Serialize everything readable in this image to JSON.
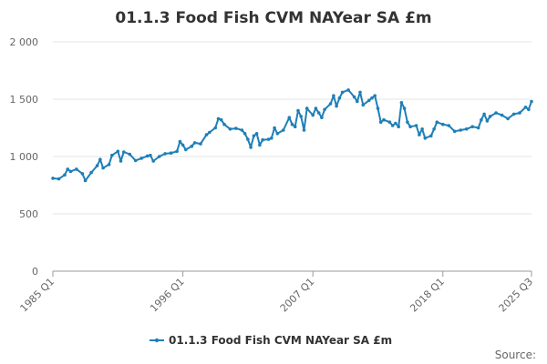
{
  "chart_data": {
    "type": "line",
    "title": "01.1.3 Food Fish CVM NAYear SA £m",
    "ylim": [
      0,
      2000
    ],
    "yticks": [
      "0",
      "500",
      "1 000",
      "1 500",
      "2 000"
    ],
    "ytick_values": [
      0,
      500,
      1000,
      1500,
      2000
    ],
    "xtick_labels": [
      "1985 Q1",
      "1996 Q1",
      "2007 Q1",
      "2018 Q1",
      "2025 Q3"
    ],
    "xtick_values": [
      1985.0,
      1996.0,
      2007.0,
      2018.0,
      2025.5
    ],
    "xlim": [
      1985.0,
      2025.5
    ],
    "grid": true,
    "legend_position": "bottom",
    "source_label": "Source:",
    "color": "#1f7fb7",
    "series": [
      {
        "name": "01.1.3 Food Fish CVM NAYear SA £m",
        "points": [
          [
            1985.0,
            810
          ],
          [
            1985.5,
            805
          ],
          [
            1986.0,
            840
          ],
          [
            1986.25,
            890
          ],
          [
            1986.5,
            870
          ],
          [
            1987.0,
            890
          ],
          [
            1987.5,
            850
          ],
          [
            1987.75,
            790
          ],
          [
            1988.25,
            860
          ],
          [
            1988.75,
            920
          ],
          [
            1989.0,
            975
          ],
          [
            1989.25,
            900
          ],
          [
            1989.75,
            930
          ],
          [
            1990.0,
            1010
          ],
          [
            1990.5,
            1045
          ],
          [
            1990.75,
            960
          ],
          [
            1991.0,
            1040
          ],
          [
            1991.5,
            1020
          ],
          [
            1992.0,
            965
          ],
          [
            1992.5,
            985
          ],
          [
            1993.0,
            1005
          ],
          [
            1993.25,
            1010
          ],
          [
            1993.5,
            960
          ],
          [
            1994.0,
            1000
          ],
          [
            1994.5,
            1025
          ],
          [
            1995.0,
            1030
          ],
          [
            1995.5,
            1045
          ],
          [
            1995.75,
            1130
          ],
          [
            1996.0,
            1100
          ],
          [
            1996.25,
            1060
          ],
          [
            1996.75,
            1090
          ],
          [
            1997.0,
            1120
          ],
          [
            1997.5,
            1110
          ],
          [
            1998.0,
            1190
          ],
          [
            1998.25,
            1210
          ],
          [
            1998.75,
            1250
          ],
          [
            1999.0,
            1330
          ],
          [
            1999.25,
            1320
          ],
          [
            1999.5,
            1280
          ],
          [
            2000.0,
            1240
          ],
          [
            2000.5,
            1245
          ],
          [
            2001.0,
            1230
          ],
          [
            2001.25,
            1200
          ],
          [
            2001.5,
            1150
          ],
          [
            2001.75,
            1080
          ],
          [
            2002.0,
            1180
          ],
          [
            2002.25,
            1200
          ],
          [
            2002.5,
            1100
          ],
          [
            2002.75,
            1145
          ],
          [
            2003.25,
            1150
          ],
          [
            2003.5,
            1160
          ],
          [
            2003.75,
            1250
          ],
          [
            2004.0,
            1200
          ],
          [
            2004.5,
            1230
          ],
          [
            2005.0,
            1340
          ],
          [
            2005.25,
            1280
          ],
          [
            2005.5,
            1260
          ],
          [
            2005.75,
            1400
          ],
          [
            2006.0,
            1350
          ],
          [
            2006.25,
            1230
          ],
          [
            2006.5,
            1420
          ],
          [
            2007.0,
            1360
          ],
          [
            2007.25,
            1420
          ],
          [
            2007.5,
            1380
          ],
          [
            2007.75,
            1340
          ],
          [
            2008.0,
            1410
          ],
          [
            2008.5,
            1460
          ],
          [
            2008.75,
            1530
          ],
          [
            2009.0,
            1440
          ],
          [
            2009.25,
            1510
          ],
          [
            2009.5,
            1560
          ],
          [
            2010.0,
            1580
          ],
          [
            2010.5,
            1520
          ],
          [
            2010.75,
            1480
          ],
          [
            2011.0,
            1560
          ],
          [
            2011.25,
            1450
          ],
          [
            2011.75,
            1490
          ],
          [
            2012.0,
            1510
          ],
          [
            2012.25,
            1530
          ],
          [
            2012.5,
            1420
          ],
          [
            2012.75,
            1300
          ],
          [
            2013.0,
            1320
          ],
          [
            2013.5,
            1300
          ],
          [
            2013.75,
            1270
          ],
          [
            2014.0,
            1290
          ],
          [
            2014.25,
            1260
          ],
          [
            2014.5,
            1470
          ],
          [
            2014.75,
            1420
          ],
          [
            2015.0,
            1300
          ],
          [
            2015.25,
            1260
          ],
          [
            2015.75,
            1270
          ],
          [
            2016.0,
            1190
          ],
          [
            2016.25,
            1240
          ],
          [
            2016.5,
            1160
          ],
          [
            2017.0,
            1180
          ],
          [
            2017.25,
            1240
          ],
          [
            2017.5,
            1300
          ],
          [
            2018.0,
            1280
          ],
          [
            2018.5,
            1270
          ],
          [
            2019.0,
            1220
          ],
          [
            2019.5,
            1230
          ],
          [
            2020.0,
            1240
          ],
          [
            2020.5,
            1260
          ],
          [
            2021.0,
            1250
          ],
          [
            2021.25,
            1320
          ],
          [
            2021.5,
            1370
          ],
          [
            2021.75,
            1310
          ],
          [
            2022.0,
            1350
          ],
          [
            2022.5,
            1380
          ],
          [
            2023.0,
            1360
          ],
          [
            2023.5,
            1330
          ],
          [
            2024.0,
            1370
          ],
          [
            2024.5,
            1380
          ],
          [
            2025.0,
            1430
          ],
          [
            2025.25,
            1410
          ],
          [
            2025.5,
            1480
          ]
        ]
      }
    ]
  }
}
